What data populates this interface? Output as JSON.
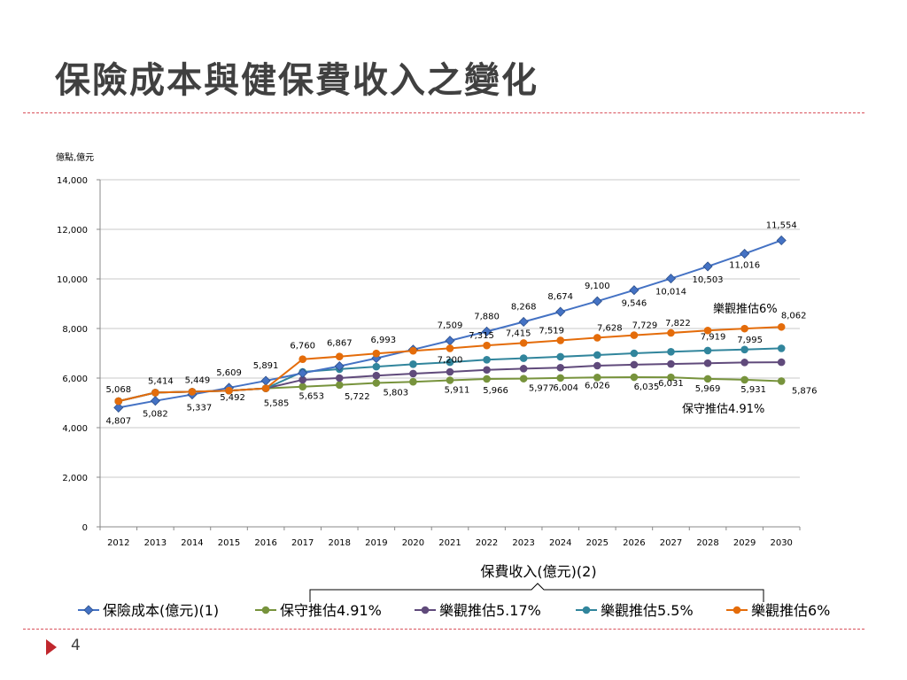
{
  "slide": {
    "title": "保險成本與健保費收入之變化",
    "page_number": "4"
  },
  "colors": {
    "cost": "#4472c4",
    "conservative": "#77933c",
    "opt517": "#604a7b",
    "opt55": "#31859c",
    "opt6": "#e46c0a",
    "rule": "#d9505a",
    "arrow": "#c0272d"
  },
  "chart_data": {
    "type": "line",
    "ylabel": "億點,億元",
    "ylim": [
      0,
      14000
    ],
    "yticks": [
      0,
      2000,
      4000,
      6000,
      8000,
      10000,
      12000,
      14000
    ],
    "ytick_labels": [
      "0",
      "2,000",
      "4,000",
      "6,000",
      "8,000",
      "10,000",
      "12,000",
      "14,000"
    ],
    "grid": true,
    "legend_position": "bottom",
    "categories": [
      "2012",
      "2013",
      "2014",
      "2015",
      "2016",
      "2017",
      "2018",
      "2019",
      "2020",
      "2021",
      "2022",
      "2023",
      "2024",
      "2025",
      "2026",
      "2027",
      "2028",
      "2029",
      "2030"
    ],
    "series": [
      {
        "key": "cost",
        "name": "保險成本(億元)(1)",
        "marker": "diamond",
        "values": [
          4807,
          5082,
          5337,
          5609,
          5891,
          6200,
          6480,
          6800,
          7150,
          7509,
          7880,
          8268,
          8674,
          9100,
          9546,
          10014,
          10503,
          11016,
          11554
        ],
        "labels": [
          "4,807",
          "5,082",
          "5,337",
          "5,609",
          "5,891",
          "",
          "",
          "",
          "",
          "7,509",
          "7,880",
          "8,268",
          "8,674",
          "9,100",
          "9,546",
          "10,014",
          "10,503",
          "11,016",
          "11,554"
        ]
      },
      {
        "key": "conservative",
        "name": "保守推估4.91%",
        "marker": "circle",
        "values": [
          5068,
          5414,
          5449,
          5492,
          5585,
          5653,
          5722,
          5803,
          5850,
          5911,
          5966,
          5977,
          6004,
          6026,
          6035,
          6031,
          5969,
          5931,
          5876
        ],
        "labels": [
          "",
          "",
          "",
          "",
          "5,585",
          "5,653",
          "5,722",
          "5,803",
          "",
          "5,911",
          "5,966",
          "5,977",
          "6,004",
          "6,026",
          "6,035",
          "6,031",
          "5,969",
          "5,931",
          "5,876"
        ]
      },
      {
        "key": "opt517",
        "name": "樂觀推估5.17%",
        "marker": "circle",
        "values": [
          5068,
          5414,
          5449,
          5492,
          5585,
          5930,
          6000,
          6100,
          6180,
          6250,
          6330,
          6380,
          6420,
          6500,
          6540,
          6570,
          6600,
          6630,
          6640
        ],
        "labels": []
      },
      {
        "key": "opt55",
        "name": "樂觀推估5.5%",
        "marker": "circle",
        "values": [
          5068,
          5414,
          5449,
          5492,
          5585,
          6250,
          6360,
          6460,
          6560,
          6640,
          6740,
          6800,
          6860,
          6930,
          7000,
          7060,
          7110,
          7150,
          7200
        ],
        "labels": []
      },
      {
        "key": "opt6",
        "name": "樂觀推估6%",
        "marker": "circle",
        "values": [
          5068,
          5414,
          5449,
          5492,
          5585,
          6760,
          6867,
          6993,
          7100,
          7200,
          7315,
          7415,
          7519,
          7628,
          7729,
          7822,
          7919,
          7995,
          8062
        ],
        "labels": [
          "5,068",
          "5,414",
          "5,449",
          "5,492",
          "",
          "6,760",
          "6,867",
          "6,993",
          "",
          "7,200",
          "7,315",
          "7,415",
          "7,519",
          "7,628",
          "7,729",
          "7,822",
          "7,919",
          "7,995",
          "8,062"
        ]
      }
    ],
    "annotations": [
      {
        "key": "opt6_note",
        "text": "樂觀推估6%",
        "series": "opt6"
      },
      {
        "key": "cons_note",
        "text": "保守推估4.91%",
        "series": "conservative"
      },
      {
        "key": "brace_note",
        "text": "保費收入(億元)(2)"
      }
    ]
  }
}
